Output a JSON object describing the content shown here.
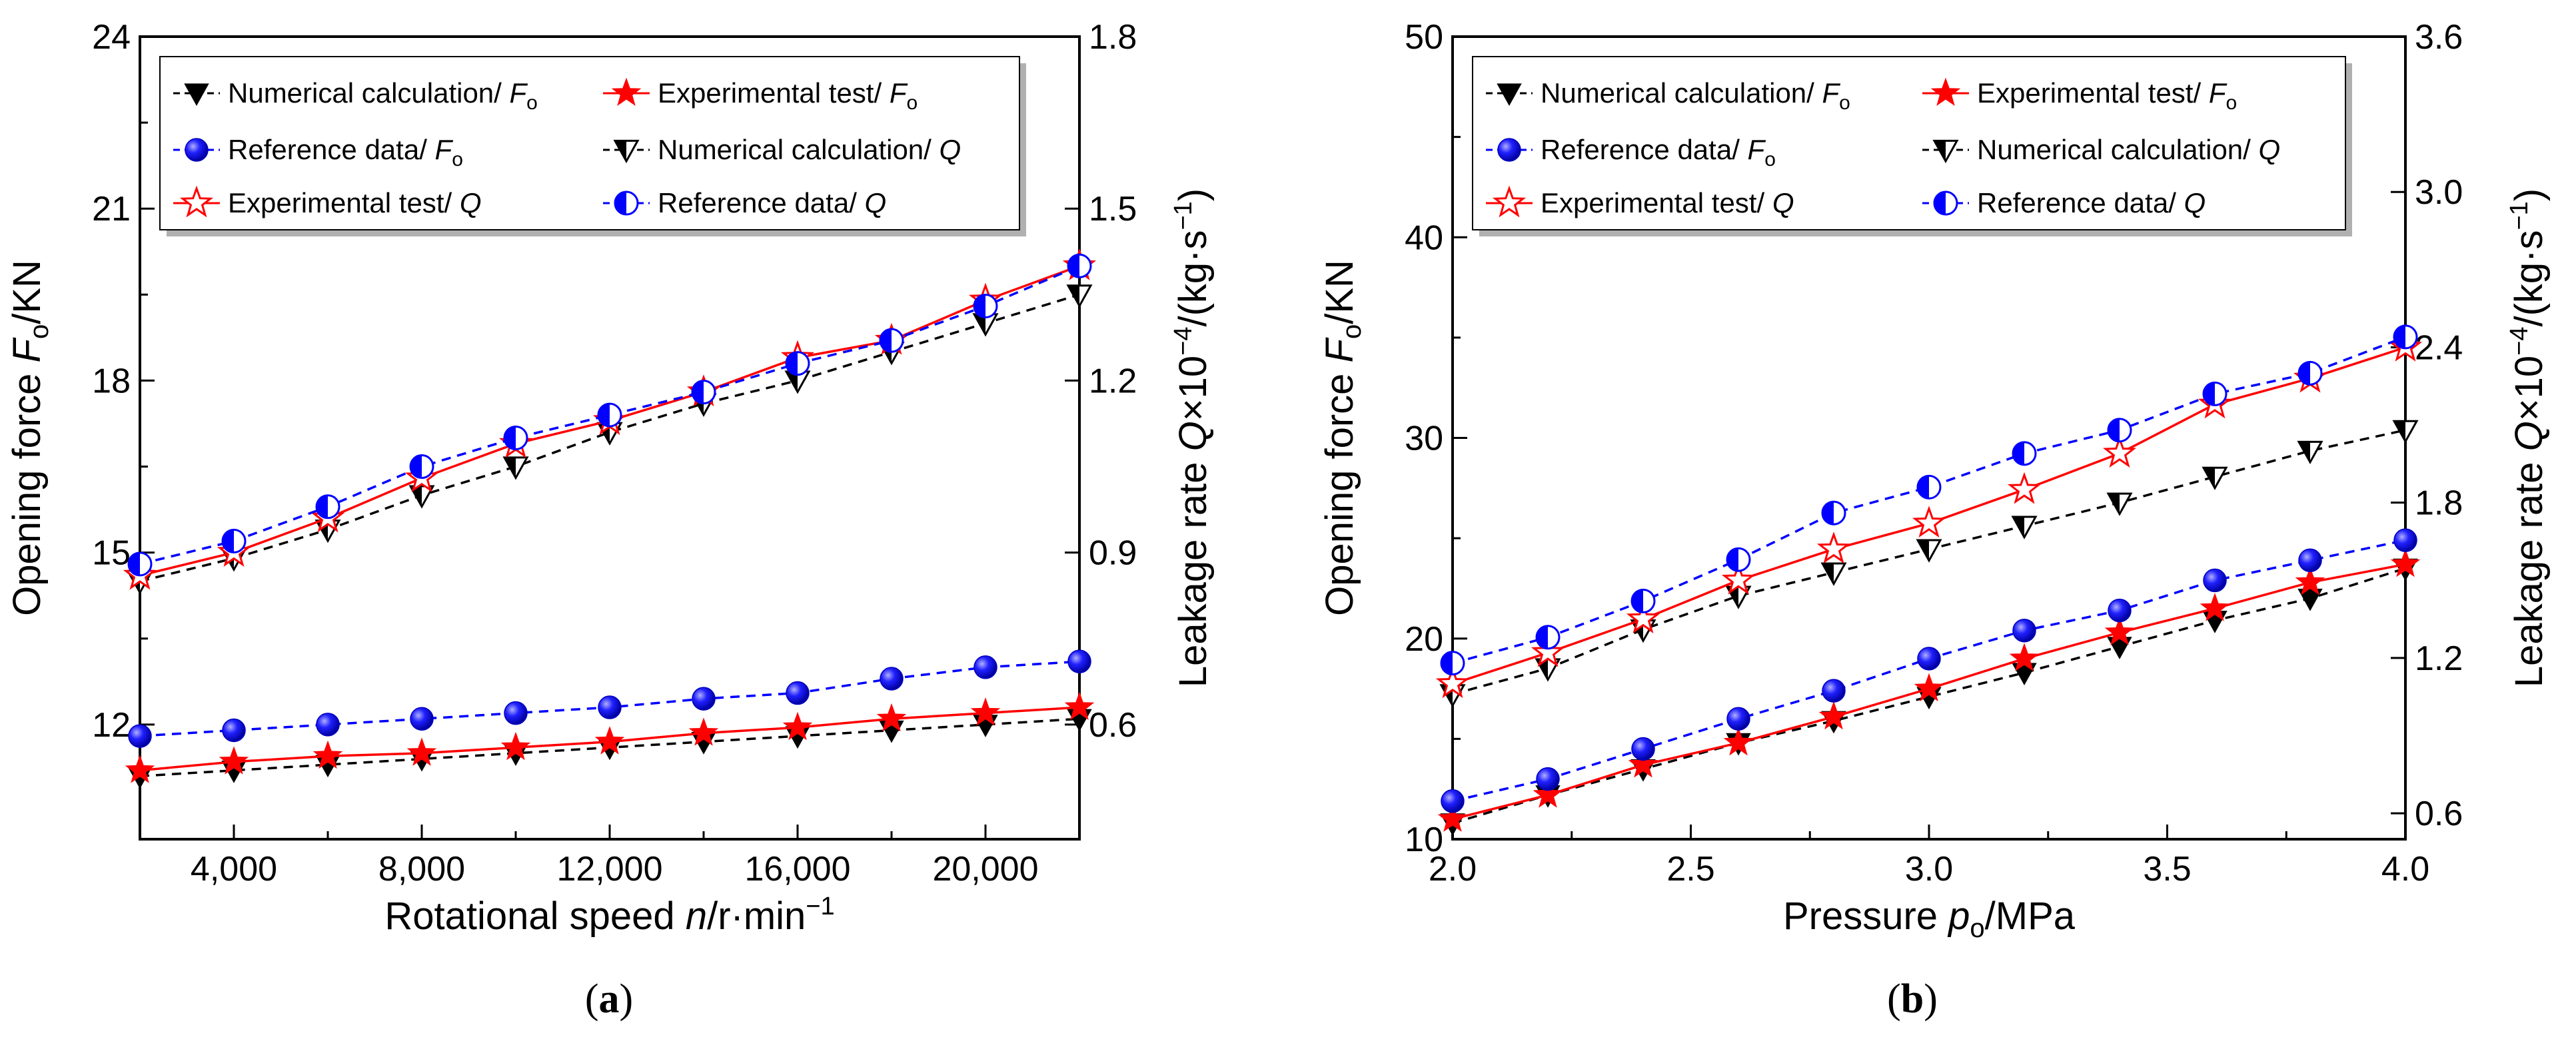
{
  "figure": {
    "subplot_a": {
      "caption_open": "(",
      "caption_letter": "a",
      "caption_close": ")"
    },
    "subplot_b": {
      "caption_open": "(",
      "caption_letter": "b",
      "caption_close": ")"
    }
  },
  "colors": {
    "numerical": "#000000",
    "experimental": "#ff0000",
    "reference": "#0000ff"
  },
  "chart_data": [
    {
      "id": "a",
      "type": "line",
      "x": [
        2000,
        4000,
        6000,
        8000,
        10000,
        12000,
        14000,
        16000,
        18000,
        20000,
        22000
      ],
      "xlim": [
        2000,
        22000
      ],
      "xticks": [
        4000,
        8000,
        12000,
        16000,
        20000
      ],
      "xticklabels": [
        "4,000",
        "8,000",
        "12,000",
        "16,000",
        "20,000"
      ],
      "xlabel": {
        "pre": "Rotational speed ",
        "var": "n",
        "post": "/r·min",
        "sup": "−1"
      },
      "ylim_left": [
        10,
        24
      ],
      "yticks_left": [
        12,
        15,
        18,
        21,
        24
      ],
      "yticklabels_left": [
        "12",
        "15",
        "18",
        "21",
        "24"
      ],
      "ylabel_left": {
        "pre": "Opening force ",
        "var": "F",
        "sub": "o",
        "post": "/KN"
      },
      "ylim_right": [
        0.4,
        1.8
      ],
      "yticks_right": [
        0.6,
        0.9,
        1.2,
        1.5,
        1.8
      ],
      "yticklabels_right": [
        "0.6",
        "0.9",
        "1.2",
        "1.5",
        "1.8"
      ],
      "ylabel_right": {
        "pre": "Leakage rate ",
        "var": "Q",
        "mid": "×10",
        "sup1": "−4",
        "post": "/(kg·s",
        "sup2": "−1",
        "end": ")"
      },
      "series": [
        {
          "name": "Numerical calculation/ Fo",
          "label": "Numerical calculation/ ",
          "var": "F",
          "sub": "o",
          "axis": "left",
          "color": "#000000",
          "dash": true,
          "marker": "tri-down",
          "values": [
            11.1,
            11.2,
            11.3,
            11.4,
            11.5,
            11.6,
            11.7,
            11.8,
            11.9,
            12.0,
            12.1
          ]
        },
        {
          "name": "Experimental test/ Fo",
          "label": "Experimental test/ ",
          "var": "F",
          "sub": "o",
          "axis": "left",
          "color": "#ff0000",
          "dash": false,
          "marker": "star",
          "values": [
            11.2,
            11.35,
            11.45,
            11.5,
            11.6,
            11.7,
            11.85,
            11.95,
            12.1,
            12.2,
            12.3
          ]
        },
        {
          "name": "Reference data/ Fo",
          "label": "Reference data/ ",
          "var": "F",
          "sub": "o",
          "axis": "left",
          "color": "#0000ff",
          "dash": true,
          "marker": "sphere",
          "values": [
            11.8,
            11.9,
            12.0,
            12.1,
            12.2,
            12.3,
            12.45,
            12.55,
            12.8,
            13.0,
            13.1
          ]
        },
        {
          "name": "Numerical calculation/ Q",
          "label": "Numerical calculation/ ",
          "var": "Q",
          "sub": "",
          "axis": "right",
          "color": "#000000",
          "dash": true,
          "marker": "tri-down-half",
          "values": [
            0.85,
            0.89,
            0.94,
            1.0,
            1.05,
            1.11,
            1.16,
            1.2,
            1.25,
            1.3,
            1.35
          ]
        },
        {
          "name": "Experimental test/ Q",
          "label": "Experimental test/ ",
          "var": "Q",
          "sub": "",
          "axis": "right",
          "color": "#ff0000",
          "dash": false,
          "marker": "star-open",
          "values": [
            0.86,
            0.9,
            0.96,
            1.03,
            1.09,
            1.13,
            1.18,
            1.24,
            1.27,
            1.34,
            1.4
          ]
        },
        {
          "name": "Reference data/ Q",
          "label": "Reference data/ ",
          "var": "Q",
          "sub": "",
          "axis": "right",
          "color": "#0000ff",
          "dash": true,
          "marker": "half-circle",
          "values": [
            0.88,
            0.92,
            0.98,
            1.05,
            1.1,
            1.14,
            1.18,
            1.23,
            1.27,
            1.33,
            1.4
          ]
        }
      ]
    },
    {
      "id": "b",
      "type": "line",
      "x": [
        2.0,
        2.2,
        2.4,
        2.6,
        2.8,
        3.0,
        3.2,
        3.4,
        3.6,
        3.8,
        4.0
      ],
      "xlim": [
        2.0,
        4.0
      ],
      "xticks": [
        2.0,
        2.5,
        3.0,
        3.5,
        4.0
      ],
      "xticklabels": [
        "2.0",
        "2.5",
        "3.0",
        "3.5",
        "4.0"
      ],
      "xlabel": {
        "pre": "Pressure ",
        "var": "p",
        "sub": "o",
        "post": "/MPa"
      },
      "ylim_left": [
        10,
        50
      ],
      "yticks_left": [
        10,
        20,
        30,
        40,
        50
      ],
      "yticklabels_left": [
        "10",
        "20",
        "30",
        "40",
        "50"
      ],
      "ylabel_left": {
        "pre": "Opening force ",
        "var": "F",
        "sub": "o",
        "post": "/KN"
      },
      "ylim_right": [
        0.5,
        3.6
      ],
      "yticks_right": [
        0.6,
        1.2,
        1.8,
        2.4,
        3.0,
        3.6
      ],
      "yticklabels_right": [
        "0.6",
        "1.2",
        "1.8",
        "2.4",
        "3.0",
        "3.6"
      ],
      "ylabel_right": {
        "pre": "Leakage rate ",
        "var": "Q",
        "mid": "×10",
        "sup1": "−4",
        "post": "/(kg·s",
        "sup2": "−1",
        "end": ")"
      },
      "series": [
        {
          "name": "Numerical calculation/ Fo",
          "label": "Numerical calculation/ ",
          "var": "F",
          "sub": "o",
          "axis": "left",
          "color": "#000000",
          "dash": true,
          "marker": "tri-down",
          "values": [
            10.8,
            12.2,
            13.5,
            14.8,
            15.9,
            17.1,
            18.3,
            19.6,
            20.9,
            22.0,
            23.5
          ]
        },
        {
          "name": "Experimental test/ Fo",
          "label": "Experimental test/ ",
          "var": "F",
          "sub": "o",
          "axis": "left",
          "color": "#ff0000",
          "dash": false,
          "marker": "star",
          "values": [
            11.0,
            12.2,
            13.7,
            14.8,
            16.1,
            17.5,
            19.0,
            20.3,
            21.5,
            22.8,
            23.7
          ]
        },
        {
          "name": "Reference data/ Fo",
          "label": "Reference data/ ",
          "var": "F",
          "sub": "o",
          "axis": "left",
          "color": "#0000ff",
          "dash": true,
          "marker": "sphere",
          "values": [
            11.9,
            13.0,
            14.5,
            16.0,
            17.4,
            19.0,
            20.4,
            21.4,
            22.9,
            23.9,
            24.9
          ]
        },
        {
          "name": "Numerical calculation/ Q",
          "label": "Numerical calculation/ ",
          "var": "Q",
          "sub": "",
          "axis": "right",
          "color": "#000000",
          "dash": true,
          "marker": "tri-down-half",
          "values": [
            1.06,
            1.16,
            1.31,
            1.44,
            1.53,
            1.62,
            1.71,
            1.8,
            1.9,
            2.0,
            2.08
          ]
        },
        {
          "name": "Experimental test/ Q",
          "label": "Experimental test/ ",
          "var": "Q",
          "sub": "",
          "axis": "right",
          "color": "#ff0000",
          "dash": false,
          "marker": "star-open",
          "values": [
            1.1,
            1.22,
            1.35,
            1.5,
            1.62,
            1.72,
            1.85,
            1.99,
            2.18,
            2.28,
            2.4
          ]
        },
        {
          "name": "Reference data/ Q",
          "label": "Reference data/ ",
          "var": "Q",
          "sub": "",
          "axis": "right",
          "color": "#0000ff",
          "dash": true,
          "marker": "half-circle",
          "values": [
            1.18,
            1.28,
            1.42,
            1.58,
            1.76,
            1.86,
            1.99,
            2.08,
            2.22,
            2.3,
            2.44
          ]
        }
      ]
    }
  ]
}
